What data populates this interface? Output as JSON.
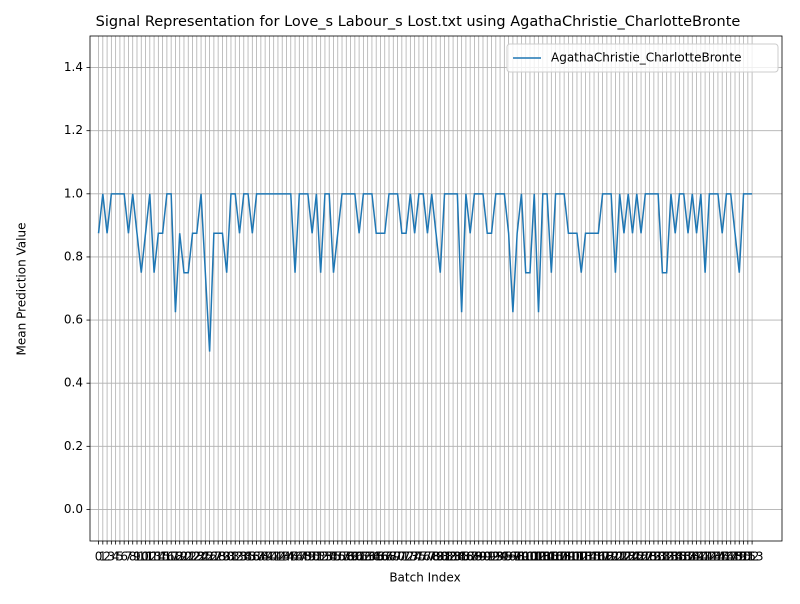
{
  "chart_data": {
    "type": "line",
    "title": "Signal Representation for Love_s Labour_s Lost.txt using AgathaChristie_CharlotteBronte",
    "x_label": "Batch Index",
    "y_label": "Mean Prediction Value",
    "x": [
      0,
      1,
      2,
      3,
      4,
      5,
      6,
      7,
      8,
      9,
      10,
      11,
      12,
      13,
      14,
      15,
      16,
      17,
      18,
      19,
      20,
      21,
      22,
      23,
      24,
      25,
      26,
      27,
      28,
      29,
      30,
      31,
      32,
      33,
      34,
      35,
      36,
      37,
      38,
      39,
      40,
      41,
      42,
      43,
      44,
      45,
      46,
      47,
      48,
      49,
      50,
      51,
      52,
      53,
      54,
      55,
      56,
      57,
      58,
      59,
      60,
      61,
      62,
      63,
      64,
      65,
      66,
      67,
      68,
      69,
      70,
      71,
      72,
      73,
      74,
      75,
      76,
      77,
      78,
      79,
      80,
      81,
      82,
      83,
      84,
      85,
      86,
      87,
      88,
      89,
      90,
      91,
      92,
      93,
      94,
      95,
      96,
      97,
      98,
      99,
      100,
      101,
      102,
      103,
      104,
      105,
      106,
      107,
      108,
      109,
      110,
      111,
      112,
      113,
      114,
      115,
      116,
      117,
      118,
      119,
      120,
      121,
      122,
      123,
      124,
      125,
      126,
      127,
      128,
      129,
      130,
      131,
      132,
      133,
      134,
      135,
      136,
      137,
      138,
      139,
      140,
      141,
      142,
      143,
      144,
      145,
      146,
      147,
      148,
      149,
      150,
      151,
      152,
      153
    ],
    "series": [
      {
        "name": "AgathaChristie_CharlotteBronte",
        "color": "#1f77b4",
        "values": [
          0.875,
          1,
          0.875,
          1,
          1,
          1,
          1,
          0.875,
          1,
          0.875,
          0.75,
          0.875,
          1,
          0.75,
          0.875,
          0.875,
          1,
          1,
          0.625,
          0.875,
          0.75,
          0.75,
          0.875,
          0.875,
          1,
          0.75,
          0.5,
          0.875,
          0.875,
          0.875,
          0.75,
          1,
          1,
          0.875,
          1,
          1,
          0.875,
          1,
          1,
          1,
          1,
          1,
          1,
          1,
          1,
          1,
          0.75,
          1,
          1,
          1,
          0.875,
          1,
          0.75,
          1,
          1,
          0.75,
          0.875,
          1,
          1,
          1,
          1,
          0.875,
          1,
          1,
          1,
          0.875,
          0.875,
          0.875,
          1,
          1,
          1,
          0.875,
          0.875,
          1,
          0.875,
          1,
          1,
          0.875,
          1,
          0.875,
          0.75,
          1,
          1,
          1,
          1,
          0.625,
          1,
          0.875,
          1,
          1,
          1,
          0.875,
          0.875,
          1,
          1,
          1,
          0.875,
          0.625,
          0.875,
          1,
          0.75,
          0.75,
          1,
          0.625,
          1,
          1,
          0.75,
          1,
          1,
          1,
          0.875,
          0.875,
          0.875,
          0.75,
          0.875,
          0.875,
          0.875,
          0.875,
          1,
          1,
          1,
          0.75,
          1,
          0.875,
          1,
          0.875,
          1,
          0.875,
          1,
          1,
          1,
          1,
          0.75,
          0.75,
          1,
          0.875,
          1,
          1,
          0.875,
          1,
          0.875,
          1,
          0.75,
          1,
          1,
          1,
          0.875,
          1,
          1,
          0.875,
          0.75,
          1,
          1,
          1
        ]
      }
    ],
    "xlim": [
      -2,
      160
    ],
    "xticks": [
      0,
      1,
      2,
      3,
      4,
      5,
      6,
      7,
      8,
      9,
      10,
      11,
      12,
      13,
      14,
      15,
      16,
      17,
      18,
      19,
      20,
      21,
      22,
      23,
      24,
      25,
      26,
      27,
      28,
      29,
      30,
      31,
      32,
      33,
      34,
      35,
      36,
      37,
      38,
      39,
      40,
      41,
      42,
      43,
      44,
      45,
      46,
      47,
      48,
      49,
      50,
      51,
      52,
      53,
      54,
      55,
      56,
      57,
      58,
      59,
      60,
      61,
      62,
      63,
      64,
      65,
      66,
      67,
      68,
      69,
      70,
      71,
      72,
      73,
      74,
      75,
      76,
      77,
      78,
      79,
      80,
      81,
      82,
      83,
      84,
      85,
      86,
      87,
      88,
      89,
      90,
      91,
      92,
      93,
      94,
      95,
      96,
      97,
      98,
      99,
      100,
      101,
      102,
      103,
      104,
      105,
      106,
      107,
      108,
      109,
      110,
      111,
      112,
      113,
      114,
      115,
      116,
      117,
      118,
      119,
      120,
      121,
      122,
      123,
      124,
      125,
      126,
      127,
      128,
      129,
      130,
      131,
      132,
      133,
      134,
      135,
      136,
      137,
      138,
      139,
      140,
      141,
      142,
      143,
      144,
      145,
      146,
      147,
      148,
      149,
      150,
      151,
      152,
      153
    ],
    "ylim": [
      -0.1,
      1.5
    ],
    "yticks": [
      {
        "value": 0,
        "label": "0.0"
      },
      0.2,
      0.4,
      0.6,
      0.8,
      {
        "value": 1,
        "label": "1.0"
      },
      1.2,
      1.4
    ],
    "grid": true,
    "legend": "upper right"
  }
}
